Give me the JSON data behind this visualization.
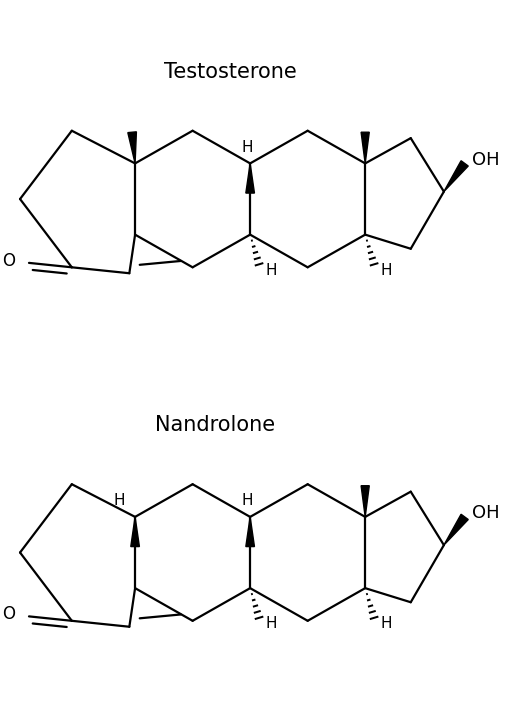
{
  "title_testosterone": "Testosterone",
  "title_nandrolone": "Nandrolone",
  "label_OH": "OH",
  "label_O": "O",
  "label_H": "H",
  "bg_color": "#ffffff",
  "line_color": "#000000",
  "line_width": 1.6,
  "font_size_title": 15,
  "font_size_label": 11,
  "font_size_OH": 13
}
